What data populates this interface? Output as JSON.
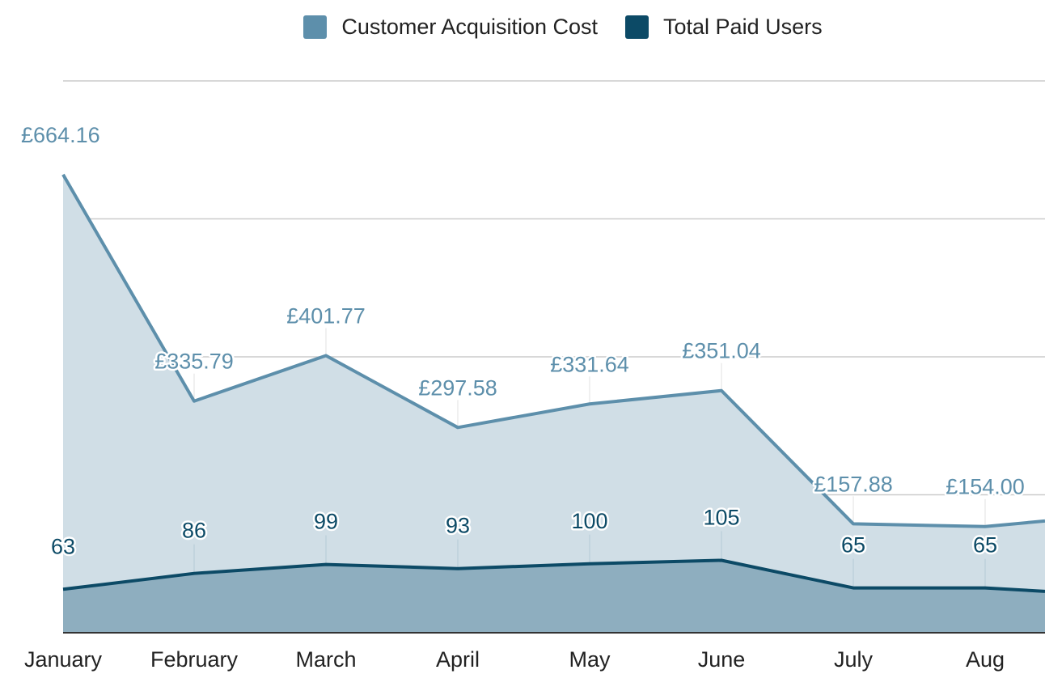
{
  "colors": {
    "cac_line": "#5d8fab",
    "cac_fill": "#d0dee6",
    "users_line": "#0c4a66",
    "users_fill": "#8eaebf",
    "grid": "#cccccc",
    "axis": "#333333",
    "cac_label": "#5d8fab",
    "users_label": "#0c4a66",
    "tick_label": "#222222"
  },
  "chart_data": {
    "type": "area",
    "categories": [
      "January",
      "February",
      "March",
      "April",
      "May",
      "June",
      "July",
      "Aug",
      ""
    ],
    "series": [
      {
        "name": "Customer Acquisition Cost",
        "key": "cac",
        "values": [
          664.16,
          335.79,
          401.77,
          297.58,
          331.64,
          351.04,
          157.88,
          154.0,
          162.0
        ],
        "labels": [
          "£664.16",
          "£335.79",
          "£401.77",
          "£297.58",
          "£331.64",
          "£351.04",
          "£157.88",
          "£154.00",
          ""
        ]
      },
      {
        "name": "Total Paid Users",
        "key": "users",
        "values": [
          63,
          86,
          99,
          93,
          100,
          105,
          65,
          65,
          60
        ],
        "labels": [
          "63",
          "86",
          "99",
          "93",
          "100",
          "105",
          "65",
          "65",
          ""
        ]
      }
    ],
    "legend_position": "top-center",
    "grid": true,
    "ylim": [
      0,
      800
    ],
    "y_gridlines": [
      200,
      400,
      600,
      800
    ]
  }
}
